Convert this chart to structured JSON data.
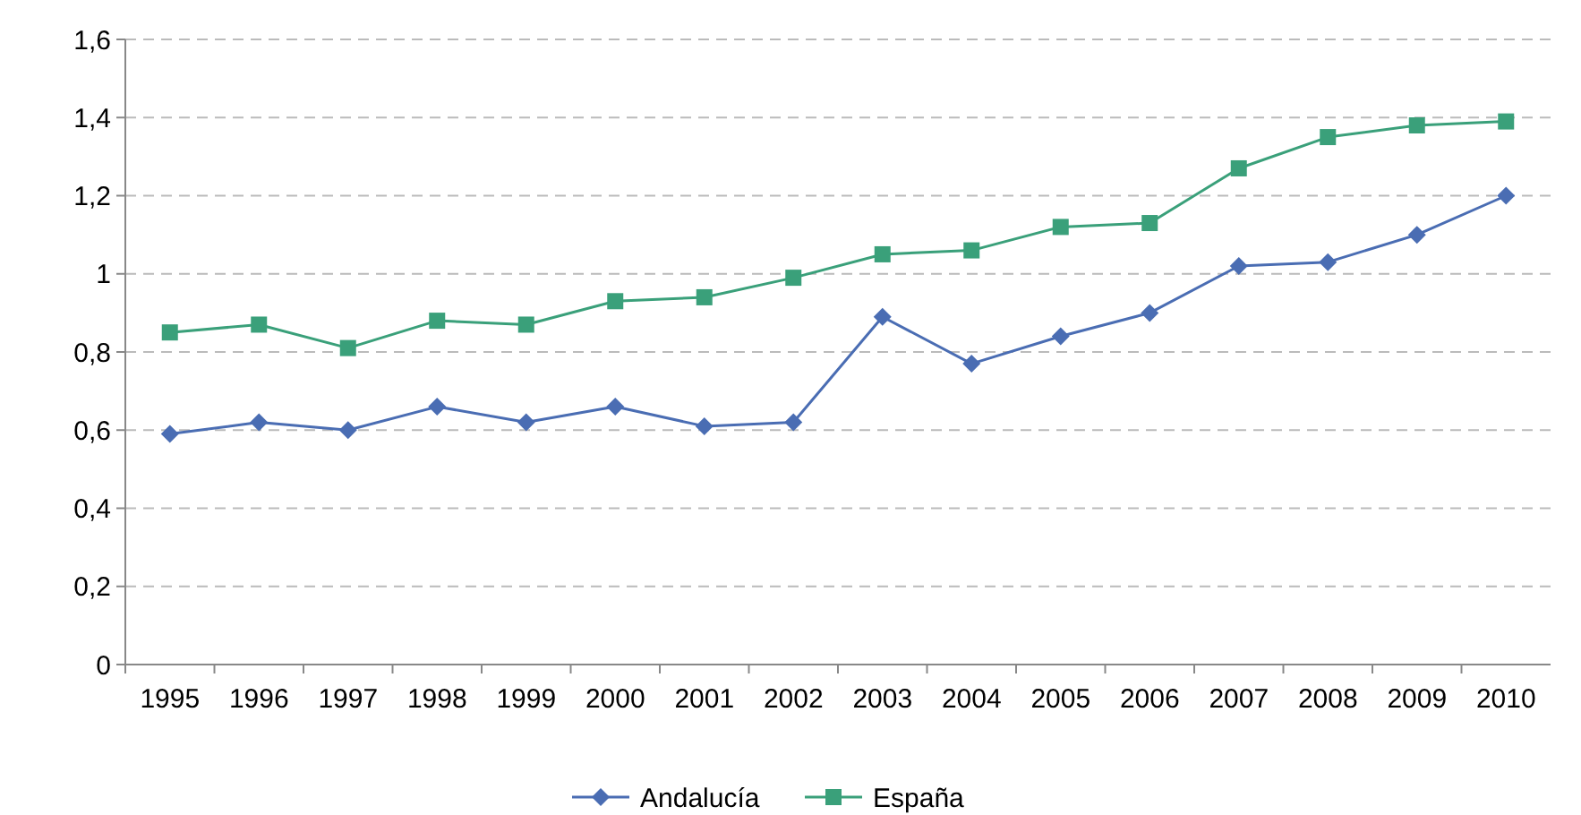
{
  "chart_data": {
    "type": "line",
    "categories": [
      "1995",
      "1996",
      "1997",
      "1998",
      "1999",
      "2000",
      "2001",
      "2002",
      "2003",
      "2004",
      "2005",
      "2006",
      "2007",
      "2008",
      "2009",
      "2010"
    ],
    "series": [
      {
        "name": "Andalucía",
        "color": "#4a6db3",
        "marker": "diamond",
        "values": [
          0.59,
          0.62,
          0.6,
          0.66,
          0.62,
          0.66,
          0.61,
          0.62,
          0.89,
          0.77,
          0.84,
          0.9,
          1.02,
          1.03,
          1.1,
          1.2
        ]
      },
      {
        "name": "España",
        "color": "#3aa07a",
        "marker": "square",
        "values": [
          0.85,
          0.87,
          0.81,
          0.88,
          0.87,
          0.93,
          0.94,
          0.99,
          1.05,
          1.06,
          1.12,
          1.13,
          1.27,
          1.35,
          1.38,
          1.39
        ]
      }
    ],
    "ylim": [
      0,
      1.6
    ],
    "yticks": [
      {
        "value": 0,
        "label": "0"
      },
      {
        "value": 0.2,
        "label": "0,2"
      },
      {
        "value": 0.4,
        "label": "0,4"
      },
      {
        "value": 0.6,
        "label": "0,6"
      },
      {
        "value": 0.8,
        "label": "0,8"
      },
      {
        "value": 1,
        "label": "1"
      },
      {
        "value": 1.2,
        "label": "1,2"
      },
      {
        "value": 1.4,
        "label": "1,4"
      },
      {
        "value": 1.6,
        "label": "1,6"
      }
    ],
    "grid": "y",
    "legend": "bottom",
    "line_style": "solid"
  }
}
